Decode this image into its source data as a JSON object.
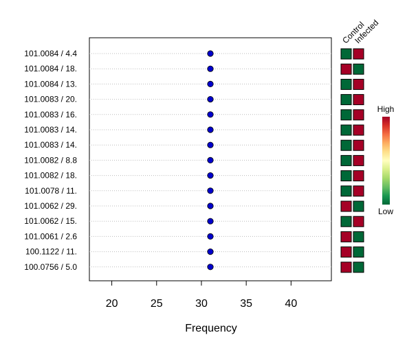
{
  "chart_data": {
    "type": "scatter",
    "xlabel": "Frequency",
    "ylabel": "",
    "xlim": [
      17.5,
      44.5
    ],
    "x_ticks": [
      20,
      25,
      30,
      35,
      40
    ],
    "grid": "horizontal dotted",
    "categories": [
      "101.0084 / 4.4",
      "101.0084 / 18.",
      "101.0084 / 13.",
      "101.0083 / 20.",
      "101.0083 / 16.",
      "101.0083 / 14.",
      "101.0083 / 14.",
      "101.0082 / 8.8",
      "101.0082 / 18.",
      "101.0078 / 11.",
      "101.0062 / 29.",
      "101.0062 / 15.",
      "101.0061 / 2.6",
      "100.1122 / 11.",
      "100.0756 / 5.0"
    ],
    "values": [
      31,
      31,
      31,
      31,
      31,
      31,
      31,
      31,
      31,
      31,
      31,
      31,
      31,
      31,
      31
    ],
    "point_color": "#0000cc",
    "heatmap": {
      "columns": [
        "Control",
        "Infected"
      ],
      "cells": [
        [
          "low",
          "high"
        ],
        [
          "high",
          "low"
        ],
        [
          "low",
          "high"
        ],
        [
          "low",
          "high"
        ],
        [
          "low",
          "high"
        ],
        [
          "low",
          "high"
        ],
        [
          "low",
          "high"
        ],
        [
          "low",
          "high"
        ],
        [
          "low",
          "high"
        ],
        [
          "low",
          "high"
        ],
        [
          "high",
          "low"
        ],
        [
          "low",
          "high"
        ],
        [
          "high",
          "low"
        ],
        [
          "high",
          "low"
        ],
        [
          "high",
          "low"
        ]
      ],
      "high_color": "#a50026",
      "low_color": "#006837"
    },
    "legend": {
      "high_label": "High",
      "low_label": "Low",
      "placement": "right",
      "gradient": [
        "#a50026",
        "#d73027",
        "#f46d43",
        "#fdae61",
        "#fee08b",
        "#ffffbf",
        "#d9ef8b",
        "#a6d96a",
        "#66bd63",
        "#1a9850",
        "#006837"
      ]
    }
  }
}
